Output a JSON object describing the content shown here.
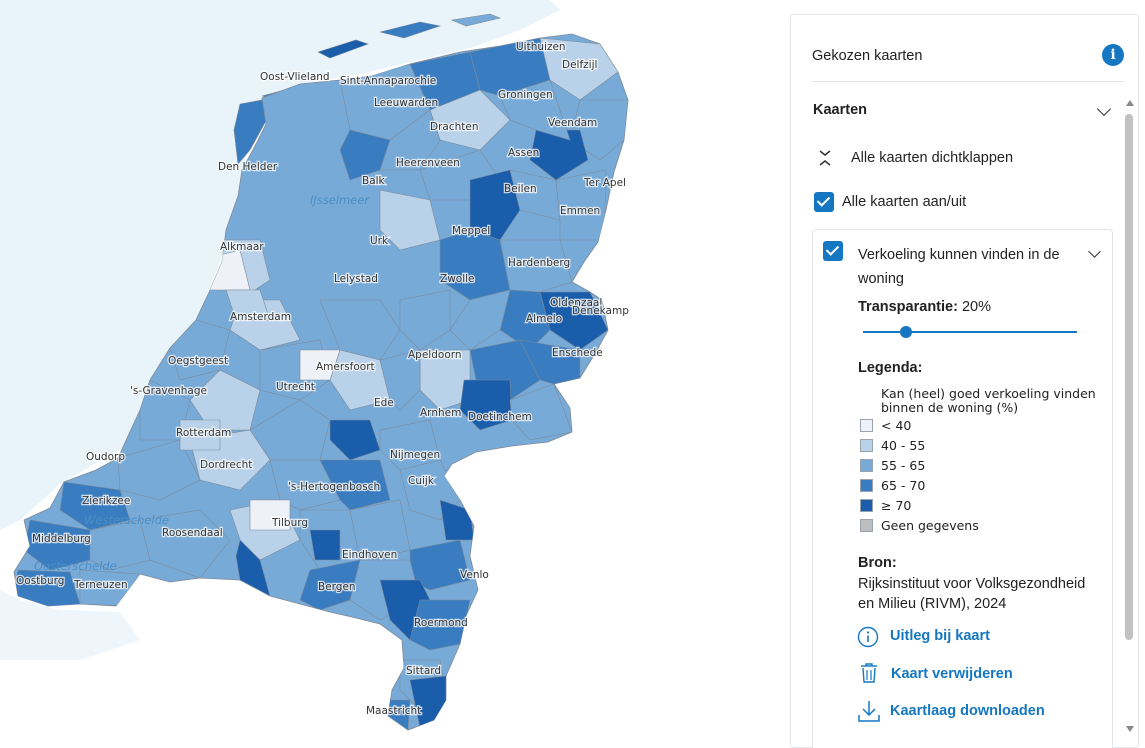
{
  "map": {
    "water_labels": [
      "IJsselmeer",
      "Westerschelde",
      "Oosterschelde"
    ],
    "places": [
      {
        "name": "Oost-Vlieland"
      },
      {
        "name": "Sint-Annaparochie"
      },
      {
        "name": "Uithuizen"
      },
      {
        "name": "Delfzijl"
      },
      {
        "name": "Leeuwarden"
      },
      {
        "name": "Groningen"
      },
      {
        "name": "Drachten"
      },
      {
        "name": "Veendam"
      },
      {
        "name": "Den Helder"
      },
      {
        "name": "Heerenveen"
      },
      {
        "name": "Assen"
      },
      {
        "name": "Balk"
      },
      {
        "name": "Beilen"
      },
      {
        "name": "Ter Apel"
      },
      {
        "name": "Emmen"
      },
      {
        "name": "Meppel"
      },
      {
        "name": "Urk"
      },
      {
        "name": "Alkmaar"
      },
      {
        "name": "Hardenberg"
      },
      {
        "name": "Lelystad"
      },
      {
        "name": "Zwolle"
      },
      {
        "name": "Oldenzaal"
      },
      {
        "name": "Denekamp"
      },
      {
        "name": "Amsterdam"
      },
      {
        "name": "Almelo"
      },
      {
        "name": "Enschede"
      },
      {
        "name": "Apeldoorn"
      },
      {
        "name": "Oegstgeest"
      },
      {
        "name": "Amersfoort"
      },
      {
        "name": "Utrecht"
      },
      {
        "name": "'s-Gravenhage"
      },
      {
        "name": "Ede"
      },
      {
        "name": "Arnhem"
      },
      {
        "name": "Doetinchem"
      },
      {
        "name": "Rotterdam"
      },
      {
        "name": "Nijmegen"
      },
      {
        "name": "Dordrecht"
      },
      {
        "name": "Oudorp"
      },
      {
        "name": "Cuijk"
      },
      {
        "name": "Zierikzee"
      },
      {
        "name": "'s-Hertogenbosch"
      },
      {
        "name": "Middelburg"
      },
      {
        "name": "Roosendaal"
      },
      {
        "name": "Tilburg"
      },
      {
        "name": "Eindhoven"
      },
      {
        "name": "Venlo"
      },
      {
        "name": "Oostburg"
      },
      {
        "name": "Terneuzen"
      },
      {
        "name": "Bergen"
      },
      {
        "name": "Roermond"
      },
      {
        "name": "Sittard"
      },
      {
        "name": "Maastricht"
      }
    ],
    "colors": {
      "lt40": "#eef1f8",
      "40_55": "#b9d2e9",
      "55_65": "#78aad8",
      "65_70": "#3a7cc0",
      "ge70": "#1a5eab",
      "none": "#bdbdbd",
      "sea": "#e9f3fa",
      "border": "#7c8a9a"
    }
  },
  "panel": {
    "title": "Gekozen kaarten",
    "info_icon": "info-icon",
    "section_title": "Kaarten",
    "collapse_all": "Alle kaarten dichtklappen",
    "toggle_all": "Alle kaarten aan/uit",
    "layer": {
      "title_line1": "Verkoeling kunnen vinden in de",
      "title_line2": "woning",
      "transparency_label": "Transparantie:",
      "transparency_value": "20%",
      "transparency_fraction": 0.2,
      "legend_label": "Legenda:",
      "legend_title_line1": "Kan (heel) goed verkoeling vinden",
      "legend_title_line2": "binnen de woning (%)",
      "legend_items": [
        {
          "label": "< 40",
          "color": "#eef1f8"
        },
        {
          "label": "40 - 55",
          "color": "#b9d2e9"
        },
        {
          "label": "55 - 65",
          "color": "#78aad8"
        },
        {
          "label": "65 - 70",
          "color": "#3a7cc0"
        },
        {
          "label": "≥ 70",
          "color": "#1a5eab"
        },
        {
          "label": "Geen gegevens",
          "color": "#bdbdbd"
        }
      ],
      "source_label": "Bron:",
      "source_line1": "Rijksinstituut voor Volksgezondheid",
      "source_line2": "en Milieu (RIVM), 2024",
      "links": {
        "explain": "Uitleg bij kaart",
        "remove": "Kaart verwijderen",
        "download": "Kaartlaag downloaden"
      }
    }
  }
}
